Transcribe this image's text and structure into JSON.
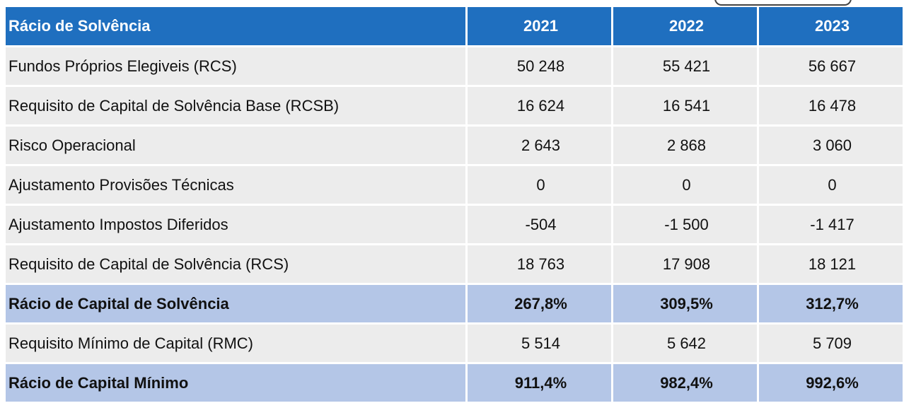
{
  "table": {
    "header": {
      "title": "Rácio de Solvência",
      "years": [
        "2021",
        "2022",
        "2023"
      ]
    },
    "rows": [
      {
        "label": "Fundos Próprios Elegiveis (RCS)",
        "values": [
          "50 248",
          "55 421",
          "56 667"
        ],
        "highlight": false
      },
      {
        "label": "Requisito de Capital de Solvência Base (RCSB)",
        "values": [
          "16 624",
          "16 541",
          "16 478"
        ],
        "highlight": false
      },
      {
        "label": "Risco Operacional",
        "values": [
          "2 643",
          "2 868",
          "3 060"
        ],
        "highlight": false
      },
      {
        "label": "Ajustamento Provisões Técnicas",
        "values": [
          "0",
          "0",
          "0"
        ],
        "highlight": false
      },
      {
        "label": "Ajustamento Impostos Diferidos",
        "values": [
          "-504",
          "-1 500",
          "-1 417"
        ],
        "highlight": false
      },
      {
        "label": "Requisito de Capital de Solvência (RCS)",
        "values": [
          "18 763",
          "17 908",
          "18 121"
        ],
        "highlight": false
      },
      {
        "label": "Rácio de Capital de Solvência",
        "values": [
          "267,8%",
          "309,5%",
          "312,7%"
        ],
        "highlight": true
      },
      {
        "label": "Requisito Mínimo de Capital (RMC)",
        "values": [
          "5 514",
          "5 642",
          "5 709"
        ],
        "highlight": false
      },
      {
        "label": "Rácio de Capital Mínimo",
        "values": [
          "911,4%",
          "982,4%",
          "992,6%"
        ],
        "highlight": true
      }
    ]
  },
  "colors": {
    "header_background": "#1f6fbf",
    "row_background": "#ececec",
    "highlight_background": "#b4c6e7"
  }
}
